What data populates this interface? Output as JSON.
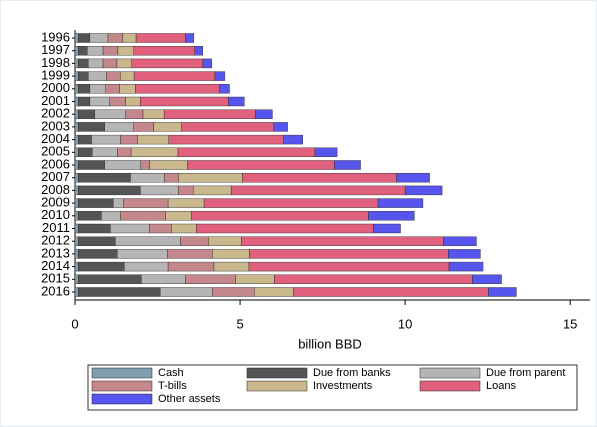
{
  "chart_data": {
    "type": "stacked-barh",
    "categories": [
      "1996",
      "1997",
      "1998",
      "1999",
      "2000",
      "2001",
      "2002",
      "2003",
      "2004",
      "2005",
      "2006",
      "2007",
      "2008",
      "2009",
      "2010",
      "2011",
      "2012",
      "2013",
      "2014",
      "2015",
      "2016"
    ],
    "series": [
      {
        "name": "Cash",
        "color": "#7f9fb0",
        "values": [
          0.1,
          0.1,
          0.1,
          0.1,
          0.1,
          0.1,
          0.1,
          0.1,
          0.1,
          0.1,
          0.1,
          0.1,
          0.1,
          0.1,
          0.1,
          0.1,
          0.1,
          0.1,
          0.1,
          0.1,
          0.1
        ]
      },
      {
        "name": "Due from banks",
        "color": "#555555",
        "values": [
          0.35,
          0.27,
          0.3,
          0.3,
          0.35,
          0.35,
          0.5,
          0.8,
          0.4,
          0.42,
          0.8,
          1.58,
          1.88,
          1.06,
          0.7,
          0.97,
          1.12,
          1.18,
          1.39,
          1.91,
          2.48
        ]
      },
      {
        "name": "Due from parent",
        "color": "#b5b5b5",
        "values": [
          0.55,
          0.48,
          0.45,
          0.55,
          0.48,
          0.6,
          0.94,
          0.88,
          0.88,
          0.76,
          1.09,
          1.03,
          1.15,
          0.3,
          0.58,
          1.18,
          1.97,
          1.52,
          1.33,
          1.33,
          1.58
        ]
      },
      {
        "name": "T-bills",
        "color": "#c4878b",
        "values": [
          0.45,
          0.45,
          0.42,
          0.42,
          0.42,
          0.48,
          0.52,
          0.6,
          0.52,
          0.42,
          0.27,
          0.42,
          0.45,
          1.36,
          1.36,
          0.67,
          0.85,
          1.36,
          1.39,
          1.52,
          1.27
        ]
      },
      {
        "name": "Investments",
        "color": "#c9b88c",
        "values": [
          0.4,
          0.48,
          0.45,
          0.42,
          0.48,
          0.45,
          0.64,
          0.85,
          0.94,
          1.42,
          1.15,
          1.94,
          1.15,
          1.09,
          0.79,
          0.76,
          1.0,
          1.12,
          1.06,
          1.18,
          1.18
        ]
      },
      {
        "name": "Loans",
        "color": "#e0607e",
        "values": [
          1.5,
          1.85,
          2.15,
          2.45,
          2.55,
          2.67,
          2.76,
          2.79,
          3.48,
          4.15,
          4.45,
          4.67,
          5.27,
          5.27,
          5.36,
          5.36,
          6.12,
          6.03,
          6.06,
          6.0,
          5.91
        ]
      },
      {
        "name": "Other assets",
        "color": "#5656ee",
        "values": [
          0.25,
          0.24,
          0.27,
          0.3,
          0.3,
          0.48,
          0.52,
          0.42,
          0.58,
          0.67,
          0.79,
          1.0,
          1.12,
          1.36,
          1.39,
          0.82,
          1.0,
          0.97,
          1.03,
          0.88,
          0.85
        ]
      }
    ],
    "x_label": "billion BBD",
    "xlim": [
      0,
      15.6
    ],
    "xticks": [
      0,
      5,
      10,
      15
    ]
  }
}
